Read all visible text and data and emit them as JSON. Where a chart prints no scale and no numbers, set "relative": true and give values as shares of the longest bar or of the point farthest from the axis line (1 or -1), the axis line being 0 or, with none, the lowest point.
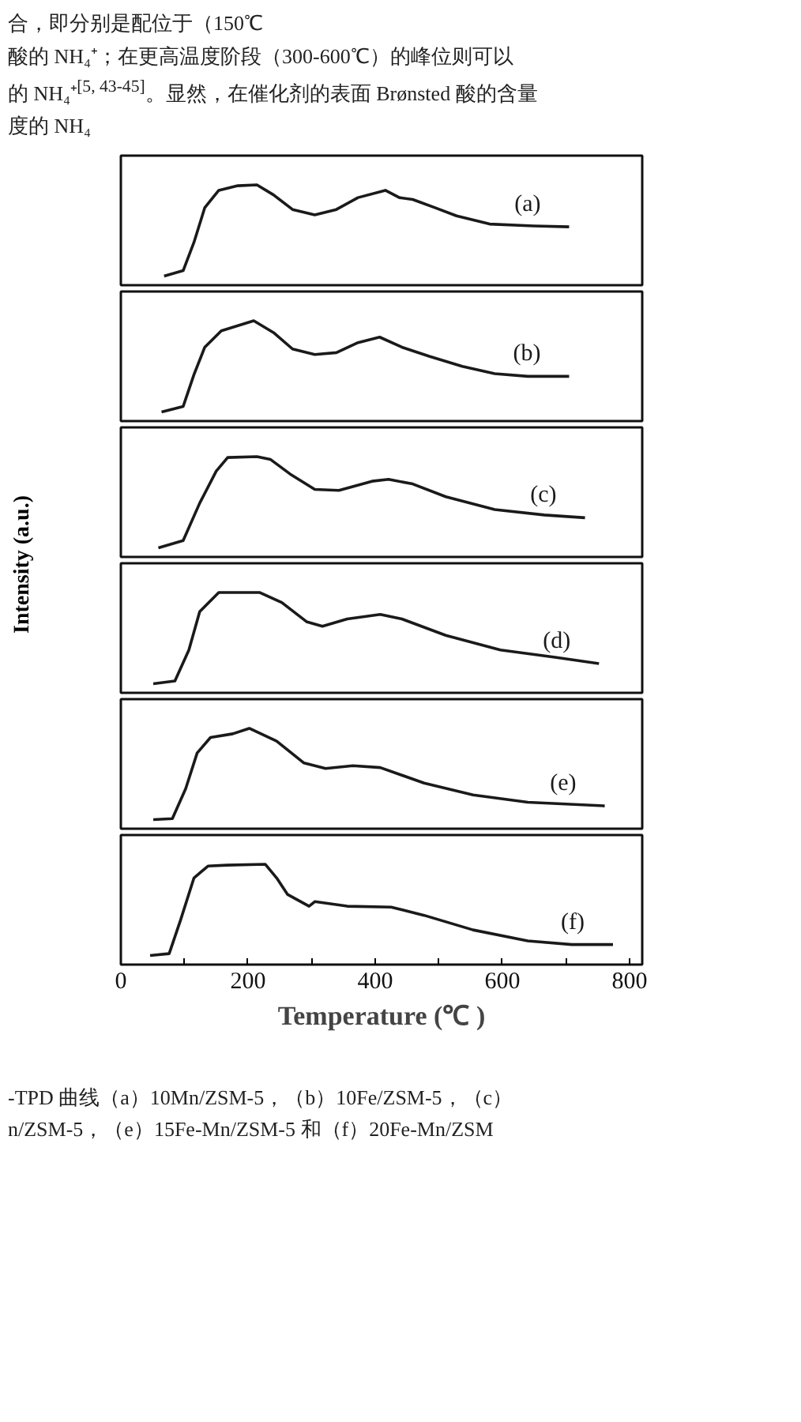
{
  "chart_data": [
    {
      "type": "line",
      "relative": true,
      "xlim": [
        0,
        820
      ],
      "tick_labels": false,
      "grid": false,
      "marker": "none",
      "line_style": "solid",
      "annotations": [
        "合，即分别是配位于（150℃",
        "酸的 NH₄⁺；在更高温度阶段（300-600℃）的峰位则可以",
        "的 NH₄⁺$^{[5, 43-45]}$。显然，在催化剂的表面 Brønsted 酸的含量",
        "度的 NH₄"
      ],
      "series": [
        {
          "name": "(a)",
          "color": "#1a1a1a",
          "x": [
            68,
            98,
            115,
            132,
            154,
            184,
            214,
            240,
            270,
            305,
            339,
            373,
            416,
            438,
            459,
            494,
            528,
            580,
            649,
            705
          ],
          "values": [
            0,
            0.06,
            0.37,
            0.75,
            0.94,
            0.99,
            1,
            0.89,
            0.73,
            0.67,
            0.73,
            0.86,
            0.94,
            0.86,
            0.84,
            0.75,
            0.66,
            0.57,
            0.55,
            0.54
          ]
        }
      ]
    },
    {
      "type": "line",
      "relative": true,
      "xlim": [
        0,
        820
      ],
      "tick_labels": false,
      "grid": false,
      "marker": "none",
      "line_style": "solid",
      "series": [
        {
          "name": "(b)",
          "color": "#1a1a1a",
          "x": [
            64,
            98,
            115,
            132,
            158,
            209,
            240,
            270,
            305,
            339,
            373,
            407,
            442,
            485,
            537,
            588,
            640,
            705
          ],
          "values": [
            0,
            0.06,
            0.41,
            0.71,
            0.89,
            1,
            0.87,
            0.69,
            0.63,
            0.65,
            0.76,
            0.82,
            0.71,
            0.61,
            0.5,
            0.42,
            0.39,
            0.39
          ]
        }
      ]
    },
    {
      "type": "line",
      "relative": true,
      "xlim": [
        0,
        820
      ],
      "tick_labels": false,
      "grid": false,
      "marker": "none",
      "line_style": "solid",
      "ylabel": "Intensity (a.u.)",
      "series": [
        {
          "name": "(c)",
          "color": "#1a1a1a",
          "x": [
            59,
            98,
            124,
            150,
            168,
            214,
            235,
            266,
            305,
            343,
            395,
            421,
            459,
            511,
            588,
            666,
            730
          ],
          "values": [
            0,
            0.08,
            0.49,
            0.84,
            0.99,
            1,
            0.97,
            0.81,
            0.64,
            0.63,
            0.73,
            0.75,
            0.7,
            0.56,
            0.42,
            0.36,
            0.33
          ]
        }
      ]
    },
    {
      "type": "line",
      "relative": true,
      "xlim": [
        0,
        820
      ],
      "tick_labels": false,
      "grid": false,
      "marker": "none",
      "line_style": "solid",
      "series": [
        {
          "name": "(d)",
          "color": "#1a1a1a",
          "x": [
            51,
            85,
            107,
            124,
            154,
            218,
            253,
            292,
            317,
            356,
            408,
            442,
            511,
            597,
            683,
            752
          ],
          "values": [
            0,
            0.03,
            0.37,
            0.79,
            1,
            1,
            0.89,
            0.68,
            0.63,
            0.71,
            0.76,
            0.71,
            0.53,
            0.37,
            0.29,
            0.22
          ]
        }
      ]
    },
    {
      "type": "line",
      "relative": true,
      "xlim": [
        0,
        820
      ],
      "tick_labels": false,
      "grid": false,
      "marker": "none",
      "line_style": "solid",
      "series": [
        {
          "name": "(e)",
          "color": "#1a1a1a",
          "x": [
            51,
            81,
            102,
            120,
            141,
            176,
            202,
            245,
            288,
            322,
            365,
            408,
            477,
            554,
            640,
            761
          ],
          "values": [
            0,
            0.01,
            0.34,
            0.73,
            0.9,
            0.94,
            1,
            0.86,
            0.62,
            0.56,
            0.59,
            0.57,
            0.4,
            0.27,
            0.19,
            0.15
          ]
        }
      ]
    },
    {
      "type": "line",
      "relative": true,
      "xlim": [
        0,
        820
      ],
      "xticks": [
        0,
        {
          "value": 100,
          "label": null
        },
        200,
        {
          "value": 300,
          "label": null
        },
        400,
        {
          "value": 500,
          "label": null
        },
        600,
        {
          "value": 700,
          "label": null
        },
        800
      ],
      "tick_labels": "x",
      "xlabel": "Temperature (℃ )",
      "grid": false,
      "marker": "none",
      "line_style": "solid",
      "annotations": [
        "-TPD 曲线（a）10Mn/ZSM-5，（b）10Fe/ZSM-5，（c）",
        "n/ZSM-5，（e）15Fe-Mn/ZSM-5 和（f）20Fe-Mn/ZSM"
      ],
      "series": [
        {
          "name": "(f)",
          "color": "#1a1a1a",
          "x": [
            46,
            76,
            94,
            115,
            137,
            167,
            227,
            245,
            262,
            296,
            305,
            356,
            425,
            477,
            554,
            640,
            709,
            774
          ],
          "values": [
            0,
            0.02,
            0.39,
            0.85,
            0.98,
            0.99,
            1,
            0.85,
            0.67,
            0.54,
            0.59,
            0.54,
            0.53,
            0.44,
            0.28,
            0.16,
            0.12,
            0.12
          ]
        }
      ]
    }
  ]
}
